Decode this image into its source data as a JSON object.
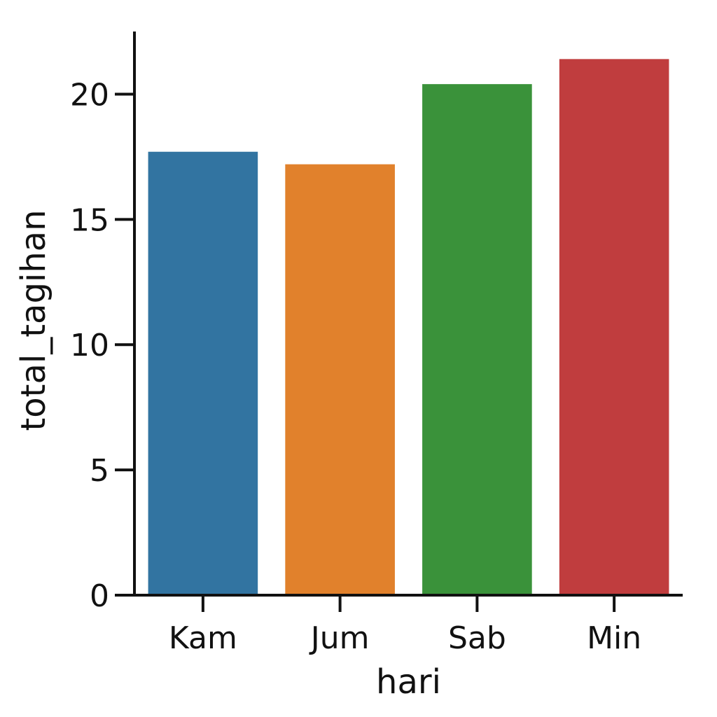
{
  "chart_data": {
    "type": "bar",
    "categories": [
      "Kam",
      "Jum",
      "Sab",
      "Min"
    ],
    "values": [
      17.7,
      17.2,
      20.4,
      21.4
    ],
    "colors": [
      "#3274a1",
      "#e1812c",
      "#3a923a",
      "#c03d3e"
    ],
    "xlabel": "hari",
    "ylabel": "total_tagihan",
    "ylim": [
      0,
      22.5
    ],
    "yticks": [
      0,
      5,
      10,
      15,
      20
    ],
    "grid": false
  }
}
